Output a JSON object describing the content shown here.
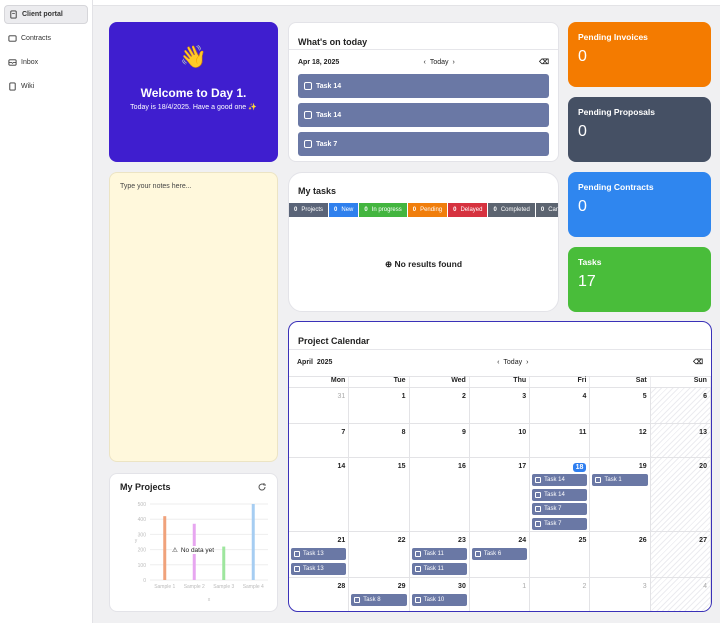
{
  "sidebar": {
    "items": [
      {
        "label": "Client portal"
      },
      {
        "label": "Contracts"
      },
      {
        "label": "Inbox"
      },
      {
        "label": "Wiki"
      }
    ]
  },
  "welcome": {
    "emoji": "👋",
    "title": "Welcome to Day 1.",
    "subtitle": "Today is 18/4/2025. Have a good one ✨"
  },
  "notes": {
    "placeholder": "Type your notes here..."
  },
  "today": {
    "title": "What's on today",
    "date": "Apr 18, 2025",
    "today_label": "Today",
    "tasks": [
      "Task 14",
      "Task 14",
      "Task 7"
    ]
  },
  "mytasks": {
    "title": "My tasks",
    "tabs": [
      {
        "count": "0",
        "label": "Projects",
        "color": "#5a6478"
      },
      {
        "count": "0",
        "label": "New",
        "color": "#2f80ed"
      },
      {
        "count": "0",
        "label": "In progress",
        "color": "#43b53f"
      },
      {
        "count": "0",
        "label": "Pending",
        "color": "#f07e0c"
      },
      {
        "count": "0",
        "label": "Delayed",
        "color": "#d6323f"
      },
      {
        "count": "0",
        "label": "Completed",
        "color": "#5c6470"
      },
      {
        "count": "0",
        "label": "Canceled",
        "color": "#5c6470"
      }
    ],
    "empty": "No results found"
  },
  "stats": [
    {
      "label": "Pending Invoices",
      "value": "0",
      "color": "#f47b00"
    },
    {
      "label": "Pending Proposals",
      "value": "0",
      "color": "#455064"
    },
    {
      "label": "Pending Contracts",
      "value": "0",
      "color": "#2f86ef"
    },
    {
      "label": "Tasks",
      "value": "17",
      "color": "#49bd3a"
    }
  ],
  "projects": {
    "title": "My Projects",
    "no_data": "No data yet",
    "chart_data": {
      "type": "bar",
      "categories": [
        "Sample 1",
        "Sample 2",
        "Sample 3",
        "Sample 4"
      ],
      "values": [
        420,
        370,
        220,
        500
      ],
      "colors": [
        "#f0a27b",
        "#e7a6f0",
        "#9ee69e",
        "#a6cdf2"
      ],
      "xlabel": "x",
      "ylabel": "y",
      "ylim": [
        0,
        500
      ],
      "yticks": [
        0,
        100,
        200,
        300,
        400,
        500
      ]
    }
  },
  "calendar": {
    "title": "Project Calendar",
    "month": "April",
    "year": "2025",
    "today_label": "Today",
    "dow": [
      "Mon",
      "Tue",
      "Wed",
      "Thu",
      "Fri",
      "Sat",
      "Sun"
    ],
    "weeks": [
      {
        "days": [
          {
            "n": "31",
            "o": true
          },
          {
            "n": "1"
          },
          {
            "n": "2"
          },
          {
            "n": "3"
          },
          {
            "n": "4"
          },
          {
            "n": "5"
          },
          {
            "n": "6"
          }
        ],
        "ev": []
      },
      {
        "days": [
          {
            "n": "7"
          },
          {
            "n": "8"
          },
          {
            "n": "9"
          },
          {
            "n": "10"
          },
          {
            "n": "11"
          },
          {
            "n": "12"
          },
          {
            "n": "13"
          }
        ],
        "ev": []
      },
      {
        "days": [
          {
            "n": "14"
          },
          {
            "n": "15"
          },
          {
            "n": "16"
          },
          {
            "n": "17"
          },
          {
            "n": "18",
            "now": true
          },
          {
            "n": "19"
          },
          {
            "n": "20"
          }
        ],
        "ev": [
          {
            "d": 4,
            "t": "Task 14"
          },
          {
            "d": 4,
            "t": "Task 14"
          },
          {
            "d": 4,
            "t": "Task 7"
          },
          {
            "d": 4,
            "t": "Task 7"
          },
          {
            "d": 5,
            "t": "Task 1"
          }
        ]
      },
      {
        "days": [
          {
            "n": "21"
          },
          {
            "n": "22"
          },
          {
            "n": "23"
          },
          {
            "n": "24"
          },
          {
            "n": "25"
          },
          {
            "n": "26"
          },
          {
            "n": "27"
          }
        ],
        "ev": [
          {
            "d": 0,
            "t": "Task 13"
          },
          {
            "d": 0,
            "t": "Task 13"
          },
          {
            "d": 2,
            "t": "Task 11"
          },
          {
            "d": 2,
            "t": "Task 11"
          },
          {
            "d": 3,
            "t": "Task 6"
          }
        ]
      },
      {
        "days": [
          {
            "n": "28"
          },
          {
            "n": "29"
          },
          {
            "n": "30"
          },
          {
            "n": "1",
            "o": true
          },
          {
            "n": "2",
            "o": true
          },
          {
            "n": "3",
            "o": true
          },
          {
            "n": "4",
            "o": true
          }
        ],
        "ev": [
          {
            "d": 1,
            "t": "Task 8"
          },
          {
            "d": 2,
            "t": "Task 10"
          }
        ]
      }
    ]
  }
}
